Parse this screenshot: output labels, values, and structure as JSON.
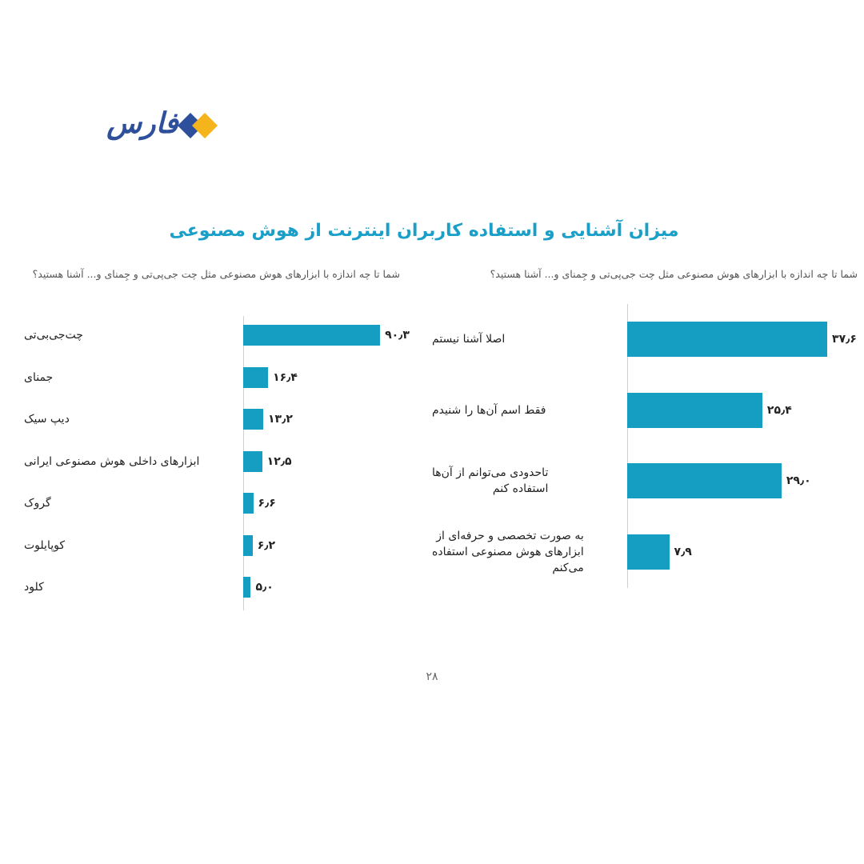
{
  "logo": {
    "text": "فارس",
    "alt": "Fars news logo"
  },
  "header": {
    "title": "میزان آشنایی و استفاده کاربران اینترنت از هوش مصنوعی"
  },
  "colors": {
    "bar": "#169ec2",
    "title": "#1aa0c8",
    "logo_blue": "#2e4f9b",
    "logo_orange": "#f5b31c"
  },
  "chart_data": [
    {
      "type": "bar",
      "orientation": "horizontal",
      "title": "شما تا چه اندازه با ابزارهای هوش مصنوعی مثل چت جی‌پی‌تی و جِمنای و... آشنا هستید؟",
      "categories": [
        "اصلا آشنا نیستم",
        "فقط اسم آن‌ها را شنیدم",
        "تاحدودی می‌توانم از آن‌ها استفاده کنم",
        "به صورت تخصصی و حرفه‌ای از ابزارهای هوش مصنوعی استفاده می‌کنم"
      ],
      "category_lines": [
        [
          "اصلا آشنا نیستم"
        ],
        [
          "فقط اسم آن‌ها را شنیدم"
        ],
        [
          "تاحدودی می‌توانم از آن‌ها",
          "استفاده کنم"
        ],
        [
          "به صورت تخصصی و حرفه‌ای از",
          "ابزارهای هوش مصنوعی استفاده",
          "می‌کنم"
        ]
      ],
      "values": [
        37.6,
        25.4,
        29.0,
        7.9
      ],
      "value_labels": [
        "۳۷٫۶",
        "۲۵٫۴",
        "۲۹٫۰",
        "۷٫۹"
      ],
      "xlim": [
        0,
        40
      ]
    },
    {
      "type": "bar",
      "orientation": "horizontal",
      "title": "شما تا چه اندازه با ابزارهای هوش مصنوعی مثل چت جی‌پی‌تی و جِمنای و... آشنا هستید؟",
      "categories": [
        "چت‌جی‌بی‌تی",
        "جمنای",
        "دیپ سیک",
        "ابزارهای داخلی هوش مصنوعی ایرانی",
        "گروک",
        "کوپایلوت",
        "کلود"
      ],
      "values": [
        90.3,
        16.4,
        13.2,
        12.5,
        6.6,
        6.2,
        5.0
      ],
      "value_labels": [
        "۹۰٫۳",
        "۱۶٫۴",
        "۱۳٫۲",
        "۱۲٫۵",
        "۶٫۶",
        "۶٫۲",
        "۵٫۰"
      ],
      "xlim": [
        0,
        95
      ]
    }
  ],
  "footer": {
    "page_number": "۲۸"
  }
}
